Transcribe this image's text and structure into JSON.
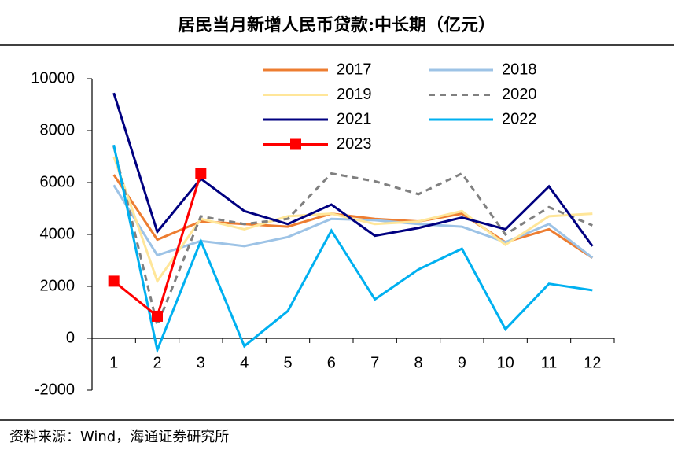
{
  "chart_data": {
    "type": "line",
    "title": "居民当月新增人民币贷款:中长期（亿元）",
    "source": "资料来源：Wind，海通证券研究所",
    "categories": [
      "1",
      "2",
      "3",
      "4",
      "5",
      "6",
      "7",
      "8",
      "9",
      "10",
      "11",
      "12"
    ],
    "ylim": [
      -2000,
      10000
    ],
    "yticks": [
      -2000,
      0,
      2000,
      4000,
      6000,
      8000,
      10000
    ],
    "series": [
      {
        "name": "2017",
        "color": "#ED7D31",
        "values": [
          6300,
          3800,
          4500,
          4400,
          4300,
          4800,
          4600,
          4500,
          4800,
          3700,
          4200,
          3100
        ]
      },
      {
        "name": "2018",
        "color": "#9DC3E6",
        "values": [
          5900,
          3200,
          3750,
          3550,
          3900,
          4600,
          4550,
          4400,
          4300,
          3700,
          4400,
          3100
        ]
      },
      {
        "name": "2019",
        "color": "#FFE699",
        "values": [
          7000,
          2200,
          4600,
          4200,
          4700,
          4800,
          4400,
          4500,
          4900,
          3600,
          4700,
          4800
        ]
      },
      {
        "name": "2020",
        "color": "#808080",
        "dashed": true,
        "values": [
          7400,
          500,
          4700,
          4400,
          4600,
          6350,
          6050,
          5550,
          6350,
          4000,
          5050,
          4350
        ]
      },
      {
        "name": "2021",
        "color": "#000080",
        "values": [
          9450,
          4100,
          6150,
          4900,
          4400,
          5150,
          3950,
          4250,
          4650,
          4200,
          5850,
          3550
        ]
      },
      {
        "name": "2022",
        "color": "#00B0F0",
        "values": [
          7450,
          -450,
          3750,
          -300,
          1050,
          4150,
          1500,
          2650,
          3450,
          350,
          2100,
          1850
        ]
      },
      {
        "name": "2023",
        "color": "#FF0000",
        "marker": true,
        "values": [
          2200,
          850,
          6350,
          null,
          null,
          null,
          null,
          null,
          null,
          null,
          null,
          null
        ]
      }
    ]
  }
}
